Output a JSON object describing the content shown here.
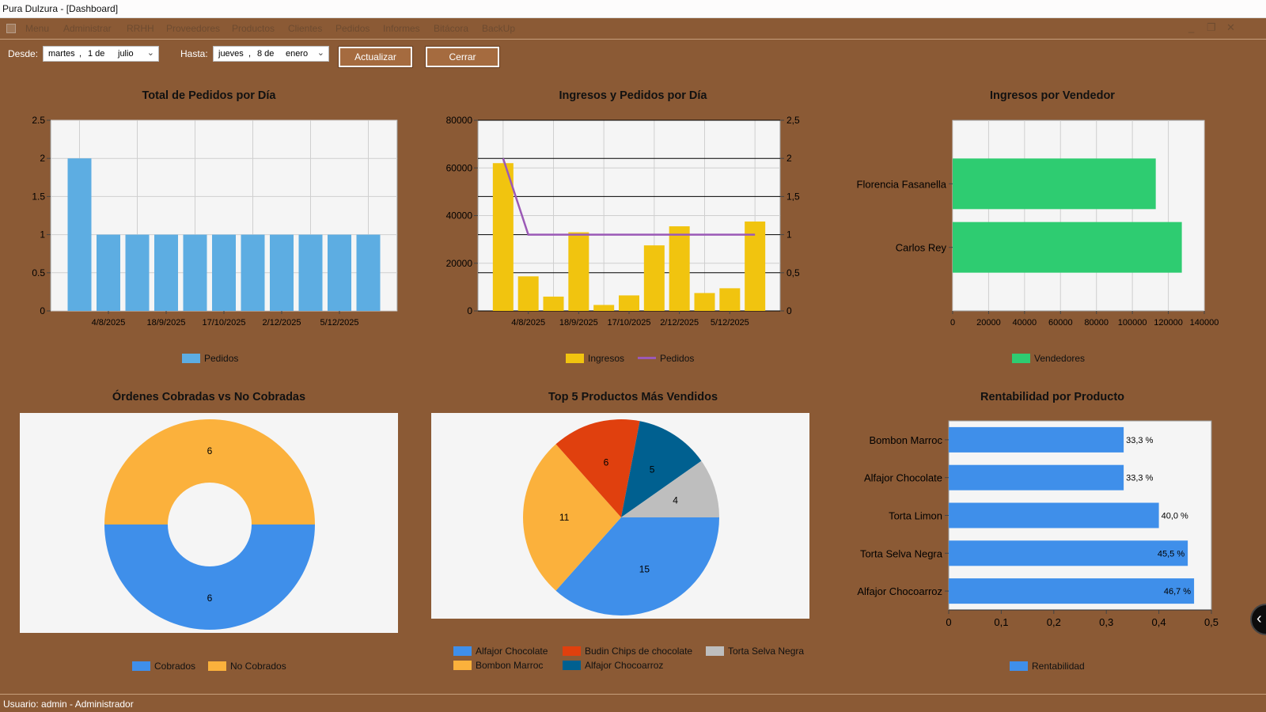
{
  "window": {
    "title": "Pura Dulzura - [Dashboard]"
  },
  "menu": {
    "items": [
      "Menu",
      "Administrar",
      "RRHH",
      "Proveedores",
      "Productos",
      "Clientes",
      "Pedidos",
      "Informes",
      "Bitácora",
      "BackUp"
    ]
  },
  "window_controls": {
    "minimize": "_",
    "restore": "❐",
    "close": "✕"
  },
  "filters": {
    "desde_label": "Desde:",
    "desde": {
      "weekday": "martes",
      "sep": ",",
      "day": "1 de",
      "month": "julio"
    },
    "hasta_label": "Hasta:",
    "hasta": {
      "weekday": "jueves",
      "sep": ",",
      "day": "8 de",
      "month": "enero"
    },
    "update_button": "Actualizar",
    "close_button": "Cerrar"
  },
  "status": {
    "user": "Usuario: admin - Administrador"
  },
  "colors": {
    "background": "#8B5A35",
    "blue": "#5DADE2",
    "gold": "#F1C40F",
    "purple": "#9B59B6",
    "green": "#2ECC71",
    "orange": "#FBB13C",
    "chart_blue": "#3F8FEA",
    "red": "#E0400E",
    "teal": "#006090",
    "gray": "#BEBEBE"
  },
  "chart_data": [
    {
      "type": "bar",
      "title": "Total de Pedidos por Día",
      "x_tick_labels": [
        "4/8/2025",
        "18/9/2025",
        "17/10/2025",
        "2/12/2025",
        "5/12/2025"
      ],
      "y_ticks": [
        "0",
        "0.5",
        "1",
        "1.5",
        "2",
        "2.5"
      ],
      "ylim": [
        0,
        2.5
      ],
      "series": [
        {
          "name": "Pedidos",
          "values": [
            2,
            1,
            1,
            1,
            1,
            1,
            1,
            1,
            1,
            1,
            1
          ]
        }
      ],
      "grid": true,
      "legend": "bottom"
    },
    {
      "type": "bar+line",
      "title": "Ingresos y Pedidos por Día",
      "x_tick_labels": [
        "4/8/2025",
        "18/9/2025",
        "17/10/2025",
        "2/12/2025",
        "5/12/2025"
      ],
      "y_ticks": [
        "0",
        "20000",
        "40000",
        "60000",
        "80000"
      ],
      "ylim": [
        0,
        80000
      ],
      "y2_ticks": [
        "0",
        "0,5",
        "1",
        "1,5",
        "2",
        "2,5"
      ],
      "y2lim": [
        0,
        2.5
      ],
      "series": [
        {
          "name": "Ingresos",
          "type": "bar",
          "values": [
            62000,
            14500,
            6000,
            33000,
            2500,
            6500,
            27500,
            35500,
            7500,
            9500,
            37500
          ]
        },
        {
          "name": "Pedidos",
          "type": "line",
          "values": [
            2,
            1,
            1,
            1,
            1,
            1,
            1,
            1,
            1,
            1,
            1
          ]
        }
      ],
      "grid": true,
      "legend": "bottom"
    },
    {
      "type": "hbar",
      "title": "Ingresos por Vendedor",
      "categories": [
        "Florencia Fasanella",
        "Carlos Rey"
      ],
      "x_ticks": [
        "0",
        "20000",
        "40000",
        "60000",
        "80000",
        "100000",
        "120000",
        "140000"
      ],
      "xlim": [
        0,
        140000
      ],
      "series": [
        {
          "name": "Vendedores",
          "values": [
            113000,
            127500
          ]
        }
      ],
      "grid": true,
      "legend": "bottom"
    },
    {
      "type": "pie",
      "title": "Órdenes Cobradas vs No Cobradas",
      "donut": true,
      "slices": [
        {
          "name": "Cobrados",
          "value": 6,
          "label": "6"
        },
        {
          "name": "No Cobrados",
          "value": 6,
          "label": "6"
        }
      ],
      "legend": "bottom"
    },
    {
      "type": "pie",
      "title": "Top 5 Productos Más Vendidos",
      "slices": [
        {
          "name": "Alfajor Chocolate",
          "value": 15,
          "label": "15"
        },
        {
          "name": "Bombon Marroc",
          "value": 11,
          "label": "11"
        },
        {
          "name": "Budin Chips de chocolate",
          "value": 6,
          "label": "6"
        },
        {
          "name": "Alfajor Chocoarroz",
          "value": 5,
          "label": "5"
        },
        {
          "name": "Torta Selva Negra",
          "value": 4,
          "label": "4"
        }
      ],
      "legend": "bottom"
    },
    {
      "type": "hbar",
      "title": "Rentabilidad por Producto",
      "categories": [
        "Bombon Marroc",
        "Alfajor Chocolate",
        "Torta Limon",
        "Torta Selva Negra",
        "Alfajor Chocoarroz"
      ],
      "x_ticks": [
        "0",
        "0,1",
        "0,2",
        "0,3",
        "0,4",
        "0,5"
      ],
      "xlim": [
        0,
        0.5
      ],
      "series": [
        {
          "name": "Rentabilidad",
          "values": [
            0.333,
            0.333,
            0.4,
            0.455,
            0.467
          ],
          "labels": [
            "33,3 %",
            "33,3 %",
            "40,0 %",
            "45,5 %",
            "46,7 %"
          ]
        }
      ],
      "grid": false,
      "legend": "bottom"
    }
  ]
}
